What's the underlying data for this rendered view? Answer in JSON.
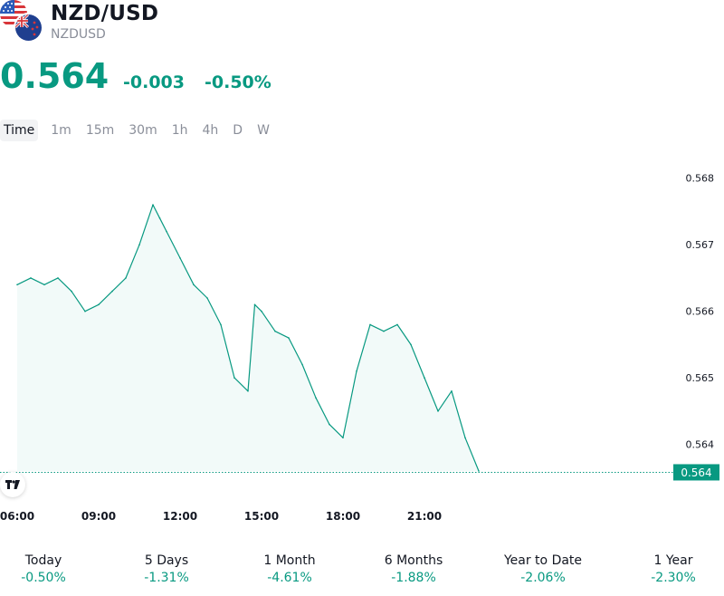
{
  "header": {
    "title": "NZD/USD",
    "subtitle": "NZDUSD",
    "flags": [
      "us-flag-icon",
      "nz-flag-icon"
    ]
  },
  "quote": {
    "price": "0.564",
    "change": "-0.003",
    "change_pct": "-0.50%"
  },
  "colors": {
    "accent": "#089981",
    "text": "#131722",
    "muted": "#8a8e99"
  },
  "tabs": [
    {
      "label": "Time",
      "active": true
    },
    {
      "label": "1m",
      "active": false
    },
    {
      "label": "15m",
      "active": false
    },
    {
      "label": "30m",
      "active": false
    },
    {
      "label": "1h",
      "active": false
    },
    {
      "label": "4h",
      "active": false
    },
    {
      "label": "D",
      "active": false
    },
    {
      "label": "W",
      "active": false
    }
  ],
  "chart_data": {
    "type": "area",
    "title": "",
    "xlabel": "",
    "ylabel": "",
    "x_ticks": [
      "06:00",
      "09:00",
      "12:00",
      "15:00",
      "18:00",
      "21:00"
    ],
    "y_ticks": [
      "0.568",
      "0.567",
      "0.566",
      "0.565",
      "0.564"
    ],
    "ylim": [
      0.5636,
      0.5685
    ],
    "last_price_label": "0.564",
    "last_price": 0.56358,
    "grid": false,
    "series": [
      {
        "x": [
          "06:00",
          "06:30",
          "07:00",
          "07:30",
          "08:00",
          "08:30",
          "09:00",
          "09:30",
          "10:00",
          "10:30",
          "11:00",
          "11:15",
          "11:30",
          "12:00",
          "12:30",
          "13:00",
          "13:30",
          "14:00",
          "14:30",
          "14:45",
          "15:00",
          "15:30",
          "16:00",
          "16:30",
          "17:00",
          "17:30",
          "18:00",
          "18:30",
          "19:00",
          "19:30",
          "20:00",
          "20:30",
          "21:00",
          "21:30",
          "22:00",
          "22:30",
          "23:00"
        ],
        "values": [
          0.5664,
          0.5665,
          0.5664,
          0.5665,
          0.5663,
          0.566,
          0.5661,
          0.5663,
          0.5665,
          0.567,
          0.5676,
          0.5674,
          0.5672,
          0.5668,
          0.5664,
          0.5662,
          0.5658,
          0.565,
          0.5648,
          0.5661,
          0.566,
          0.5657,
          0.5656,
          0.5652,
          0.5647,
          0.5643,
          0.5641,
          0.5651,
          0.5658,
          0.5657,
          0.5658,
          0.5655,
          0.565,
          0.5645,
          0.5648,
          0.5641,
          0.5636
        ]
      }
    ]
  },
  "performance": [
    {
      "label": "Today",
      "value": "-0.50%"
    },
    {
      "label": "5 Days",
      "value": "-1.31%"
    },
    {
      "label": "1 Month",
      "value": "-4.61%"
    },
    {
      "label": "6 Months",
      "value": "-1.88%"
    },
    {
      "label": "Year to Date",
      "value": "-2.06%"
    },
    {
      "label": "1 Year",
      "value": "-2.30%"
    }
  ]
}
